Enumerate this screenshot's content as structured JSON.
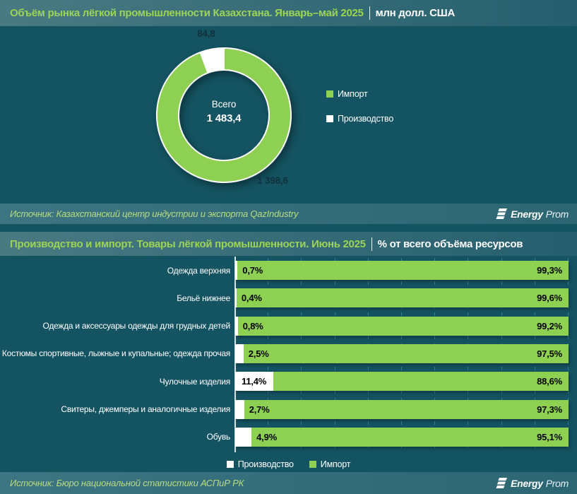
{
  "colors": {
    "background": "#145361",
    "band_teal": "#356f7d",
    "green": "#8ed052",
    "title_green": "#9cd455",
    "source_green": "#b9dc7f",
    "value_navy": "#10313f",
    "axis": "#d8e3e4",
    "gridline": "#2f8097",
    "white": "#ffffff"
  },
  "logo": {
    "bold": "Energy",
    "light": "Prom"
  },
  "sources": [
    {
      "text": "Источник: Казахстанский центр индустрии и экспорта QazIndustry"
    },
    {
      "text": "Источник: Бюро национальной статистики АСПиР РК"
    }
  ],
  "chart_data": [
    {
      "type": "pie",
      "subtype": "donut",
      "title": "Объём рынка лёгкой промышленности Казахстана. Январь–май 2025",
      "unit": "млн долл. США",
      "labels": [
        "Импорт",
        "Производство"
      ],
      "values": [
        1398.6,
        84.8
      ],
      "display_values": [
        "1 398,6",
        "84,8"
      ],
      "colors": [
        "#8ed052",
        "#ffffff"
      ],
      "total": 1483.4,
      "center_label": "Всего",
      "center_value": "1 483,4",
      "start_angle_deg": 0,
      "direction": "clockwise",
      "legend_position": "right"
    },
    {
      "type": "bar",
      "subtype": "horizontal-stacked-100pct",
      "title": "Производство и импорт. Товары лёгкой промышленности. Июнь 2025",
      "unit": "% от всего объёма ресурсов",
      "categories": [
        "Одежда верхняя",
        "Бельё нижнее",
        "Одежда и аксессуары одежды для грудных детей",
        "Костюмы спортивные, лыжные и купальные; одежда прочая",
        "Чулочные изделия",
        "Свитеры, джемперы и аналогичные изделия",
        "Обувь"
      ],
      "series": [
        {
          "name": "Производство",
          "color": "#ffffff",
          "values": [
            0.7,
            0.4,
            0.8,
            2.5,
            11.4,
            2.7,
            4.9
          ],
          "display_values": [
            "0,7%",
            "0,4%",
            "0,8%",
            "2,5%",
            "11,4%",
            "2,7%",
            "4,9%"
          ]
        },
        {
          "name": "Импорт",
          "color": "#8ed052",
          "values": [
            99.3,
            99.6,
            99.2,
            97.5,
            88.6,
            97.3,
            95.1
          ],
          "display_values": [
            "99,3%",
            "99,6%",
            "99,2%",
            "97,5%",
            "88,6%",
            "97,3%",
            "95,1%"
          ]
        }
      ],
      "xlim": [
        0,
        100
      ],
      "gridline_step_pct": 10,
      "grid": true,
      "legend_position": "bottom"
    }
  ]
}
